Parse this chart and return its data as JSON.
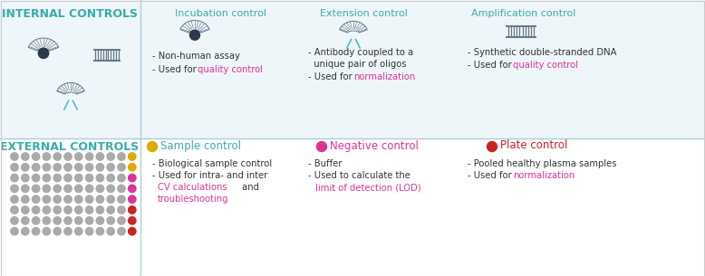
{
  "fig_w": 7.78,
  "fig_h": 3.05,
  "dpi": 100,
  "top_bg": "#eef6fa",
  "bot_bg": "#ffffff",
  "div_line_color": "#b0ccd8",
  "teal": "#3aada8",
  "magenta": "#dd3399",
  "orange": "#ddaa00",
  "red": "#cc2222",
  "dark": "#444455",
  "mid": "#667788",
  "gray_dot": "#aaaaaa",
  "title_int": "INTERNAL CONTROLS",
  "title_ext": "EXTERNAL CONTROLS",
  "inc_title": "Incubation control",
  "ext_title": "Extension control",
  "amp_title": "Amplification control",
  "smp_title": "Sample control",
  "neg_title": "Negative control",
  "plt_title": "Plate control"
}
